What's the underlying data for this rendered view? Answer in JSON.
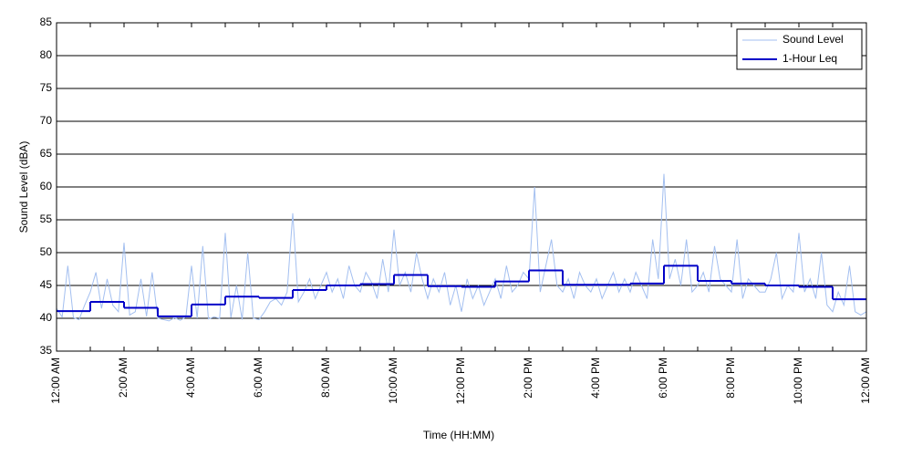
{
  "chart_data": {
    "type": "line",
    "xlabel": "Time (HH:MM)",
    "ylabel": "Sound Level (dBA)",
    "xlim": [
      0,
      1440
    ],
    "xticks": [
      {
        "value": 0,
        "label": "12:00 AM"
      },
      {
        "value": 120,
        "label": "2:00 AM"
      },
      {
        "value": 240,
        "label": "4:00 AM"
      },
      {
        "value": 360,
        "label": "6:00 AM"
      },
      {
        "value": 480,
        "label": "8:00 AM"
      },
      {
        "value": 600,
        "label": "10:00 AM"
      },
      {
        "value": 720,
        "label": "12:00 PM"
      },
      {
        "value": 840,
        "label": "2:00 PM"
      },
      {
        "value": 960,
        "label": "4:00 PM"
      },
      {
        "value": 1080,
        "label": "6:00 PM"
      },
      {
        "value": 1200,
        "label": "8:00 PM"
      },
      {
        "value": 1320,
        "label": "10:00 PM"
      },
      {
        "value": 1440,
        "label": "12:00 AM"
      }
    ],
    "xminor_ticks": [
      60,
      180,
      300,
      420,
      540,
      660,
      780,
      900,
      1020,
      1140,
      1260,
      1380
    ],
    "ylim": [
      35,
      85
    ],
    "yticks": [
      35,
      40,
      45,
      50,
      55,
      60,
      65,
      70,
      75,
      80,
      85
    ],
    "grid": true,
    "legend": "upper right",
    "series": [
      {
        "name": "Sound Level",
        "color": "#a3bff0",
        "x": [
          0,
          10,
          20,
          30,
          40,
          50,
          60,
          70,
          80,
          90,
          100,
          110,
          120,
          130,
          140,
          150,
          160,
          170,
          180,
          190,
          200,
          210,
          220,
          230,
          240,
          250,
          260,
          270,
          280,
          290,
          300,
          310,
          320,
          330,
          340,
          350,
          360,
          370,
          380,
          390,
          400,
          410,
          420,
          430,
          440,
          450,
          460,
          470,
          480,
          490,
          500,
          510,
          520,
          530,
          540,
          550,
          560,
          570,
          580,
          590,
          600,
          610,
          620,
          630,
          640,
          650,
          660,
          670,
          680,
          690,
          700,
          710,
          720,
          730,
          740,
          750,
          760,
          770,
          780,
          790,
          800,
          810,
          820,
          830,
          840,
          850,
          860,
          870,
          880,
          890,
          900,
          910,
          920,
          930,
          940,
          950,
          960,
          970,
          980,
          990,
          1000,
          1010,
          1020,
          1030,
          1040,
          1050,
          1060,
          1070,
          1080,
          1090,
          1100,
          1110,
          1120,
          1130,
          1140,
          1150,
          1160,
          1170,
          1180,
          1190,
          1200,
          1210,
          1220,
          1230,
          1240,
          1250,
          1260,
          1270,
          1280,
          1290,
          1300,
          1310,
          1320,
          1330,
          1340,
          1350,
          1360,
          1370,
          1380,
          1390,
          1400,
          1410,
          1420,
          1430,
          1440
        ],
        "values": [
          41.5,
          40.2,
          48,
          40.1,
          39.8,
          42,
          44,
          47,
          41.5,
          46,
          42,
          41,
          51.5,
          40.5,
          41,
          46,
          40.3,
          47,
          40,
          39.8,
          39.6,
          40.1,
          39.7,
          40.2,
          48,
          40,
          51,
          39.9,
          40.2,
          40,
          53,
          40.1,
          45,
          39.8,
          50,
          40,
          39.8,
          41,
          42.5,
          43,
          42,
          44,
          56,
          42.5,
          44,
          46,
          43,
          45,
          47,
          44,
          46,
          43,
          48,
          45,
          44,
          47,
          45.5,
          43,
          49,
          44,
          53.5,
          45,
          47,
          44,
          50,
          46,
          43,
          46,
          44,
          47,
          42,
          45,
          41,
          46,
          43,
          45,
          42,
          44,
          46,
          43,
          48,
          44,
          45,
          47,
          46,
          60,
          44,
          48,
          52,
          45,
          44,
          46,
          43,
          47,
          45,
          44,
          46,
          43,
          45,
          47,
          44,
          46,
          44,
          47,
          45,
          43,
          52,
          46,
          62,
          46,
          49,
          45,
          52,
          44,
          45,
          47,
          44,
          51,
          46,
          45,
          44,
          52,
          43,
          46,
          45,
          44,
          44,
          46,
          50,
          43,
          45,
          44,
          53,
          44,
          46,
          43,
          50,
          42,
          41,
          44,
          42,
          48,
          41,
          40.5,
          41
        ]
      },
      {
        "name": "1-Hour Leq",
        "color": "#0000c8",
        "x": [
          0,
          60,
          120,
          180,
          240,
          300,
          360,
          420,
          480,
          540,
          600,
          660,
          720,
          780,
          840,
          900,
          960,
          1020,
          1080,
          1140,
          1200,
          1260,
          1320,
          1380
        ],
        "values": [
          41.1,
          42.5,
          41.6,
          40.3,
          42.1,
          43.3,
          43.1,
          44.3,
          45.0,
          45.2,
          46.6,
          44.9,
          44.8,
          45.6,
          47.3,
          45.1,
          45.1,
          45.3,
          48.0,
          45.7,
          45.3,
          45.0,
          44.8,
          42.9
        ]
      }
    ]
  }
}
